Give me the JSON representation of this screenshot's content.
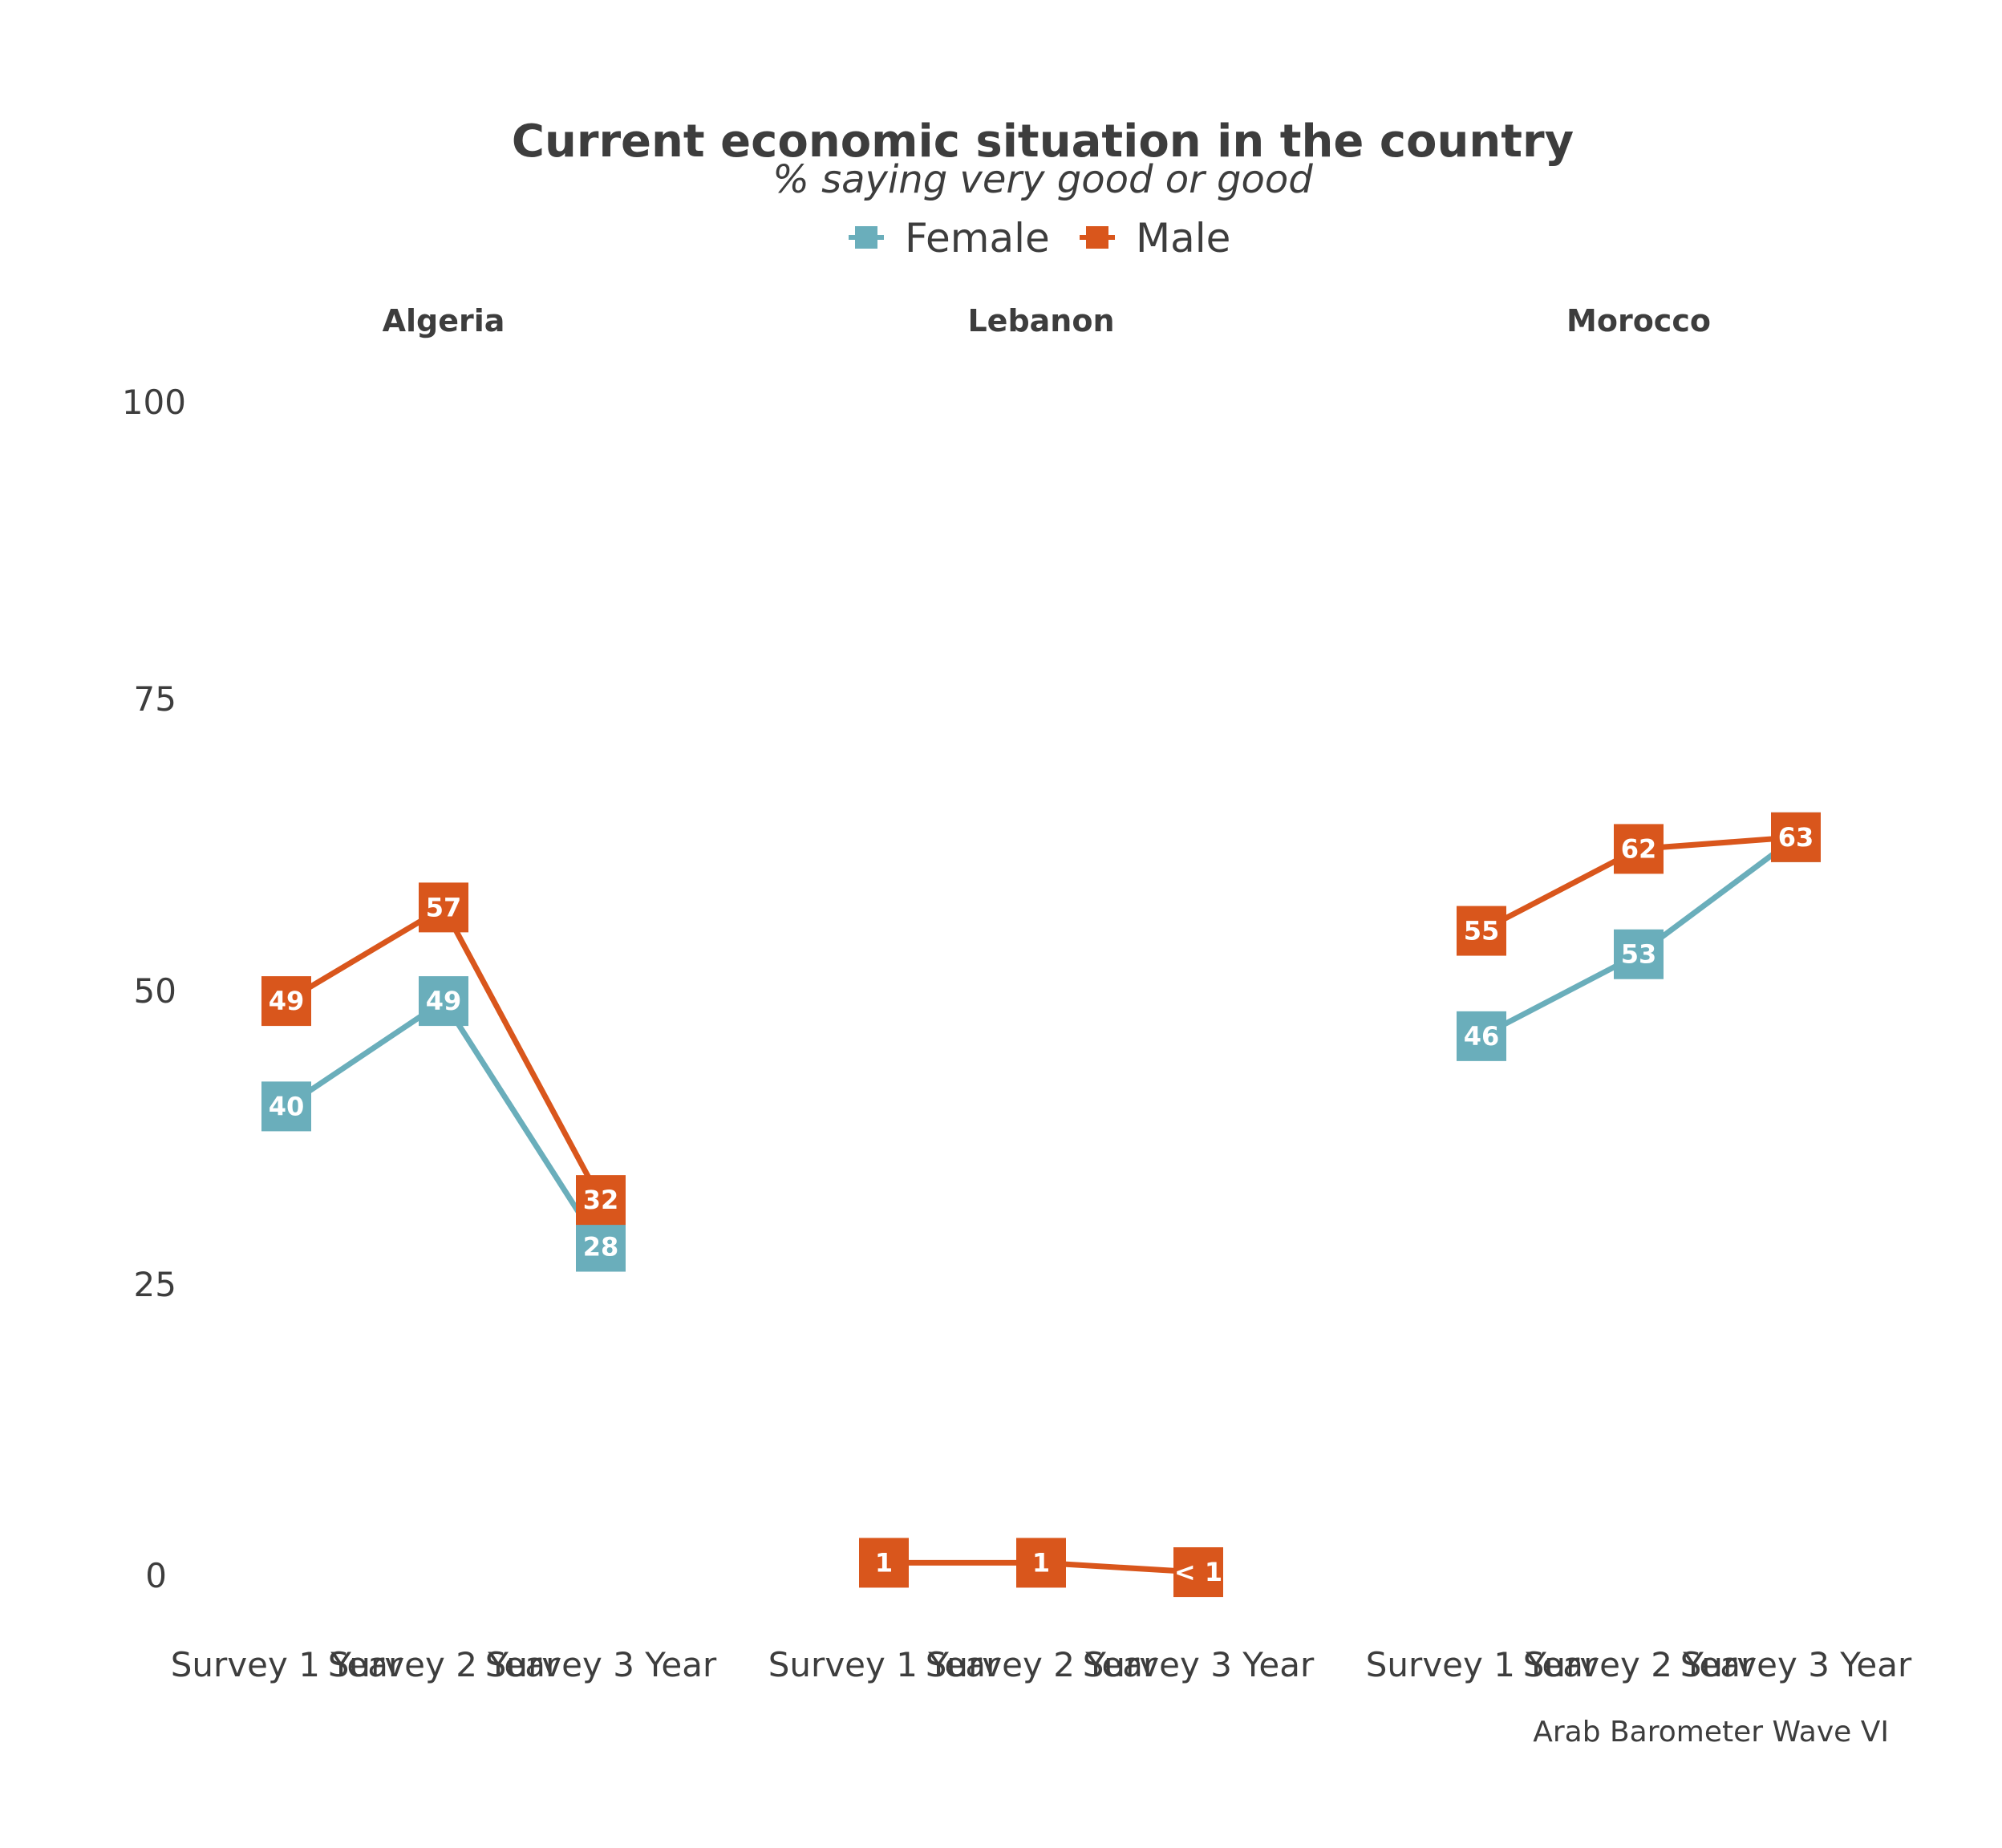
{
  "colors": {
    "Female": "#6aaebb",
    "Male": "#d9561c",
    "text": "#3d3d3d"
  },
  "chart_data": {
    "type": "line",
    "title": "Current economic situation in the country",
    "subtitle": "% saying very good or good",
    "caption": "Arab Barometer Wave VI",
    "legend": {
      "placement": "top",
      "entries": [
        "Female",
        "Male"
      ]
    },
    "ylim": [
      0,
      100
    ],
    "yticks": [
      0,
      25,
      50,
      75,
      100
    ],
    "grid": false,
    "categories": [
      "Survey 1 Year",
      "Survey 2 Year",
      "Survey 3 Year"
    ],
    "panels": [
      {
        "name": "Algeria",
        "series": [
          {
            "name": "Female",
            "values": [
              40,
              49,
              28
            ],
            "labels": [
              "40",
              "49",
              "28"
            ]
          },
          {
            "name": "Male",
            "values": [
              49,
              57,
              32
            ],
            "labels": [
              "49",
              "57",
              "32"
            ]
          }
        ]
      },
      {
        "name": "Lebanon",
        "series": [
          {
            "name": "Male",
            "values": [
              1,
              1,
              0.2
            ],
            "labels": [
              "1",
              "1",
              "< 1"
            ]
          }
        ]
      },
      {
        "name": "Morocco",
        "series": [
          {
            "name": "Female",
            "values": [
              46,
              53,
              63
            ],
            "labels": [
              "46",
              "53",
              "63"
            ]
          },
          {
            "name": "Male",
            "values": [
              55,
              62,
              63
            ],
            "labels": [
              "55",
              "62",
              "63"
            ]
          }
        ]
      }
    ]
  }
}
